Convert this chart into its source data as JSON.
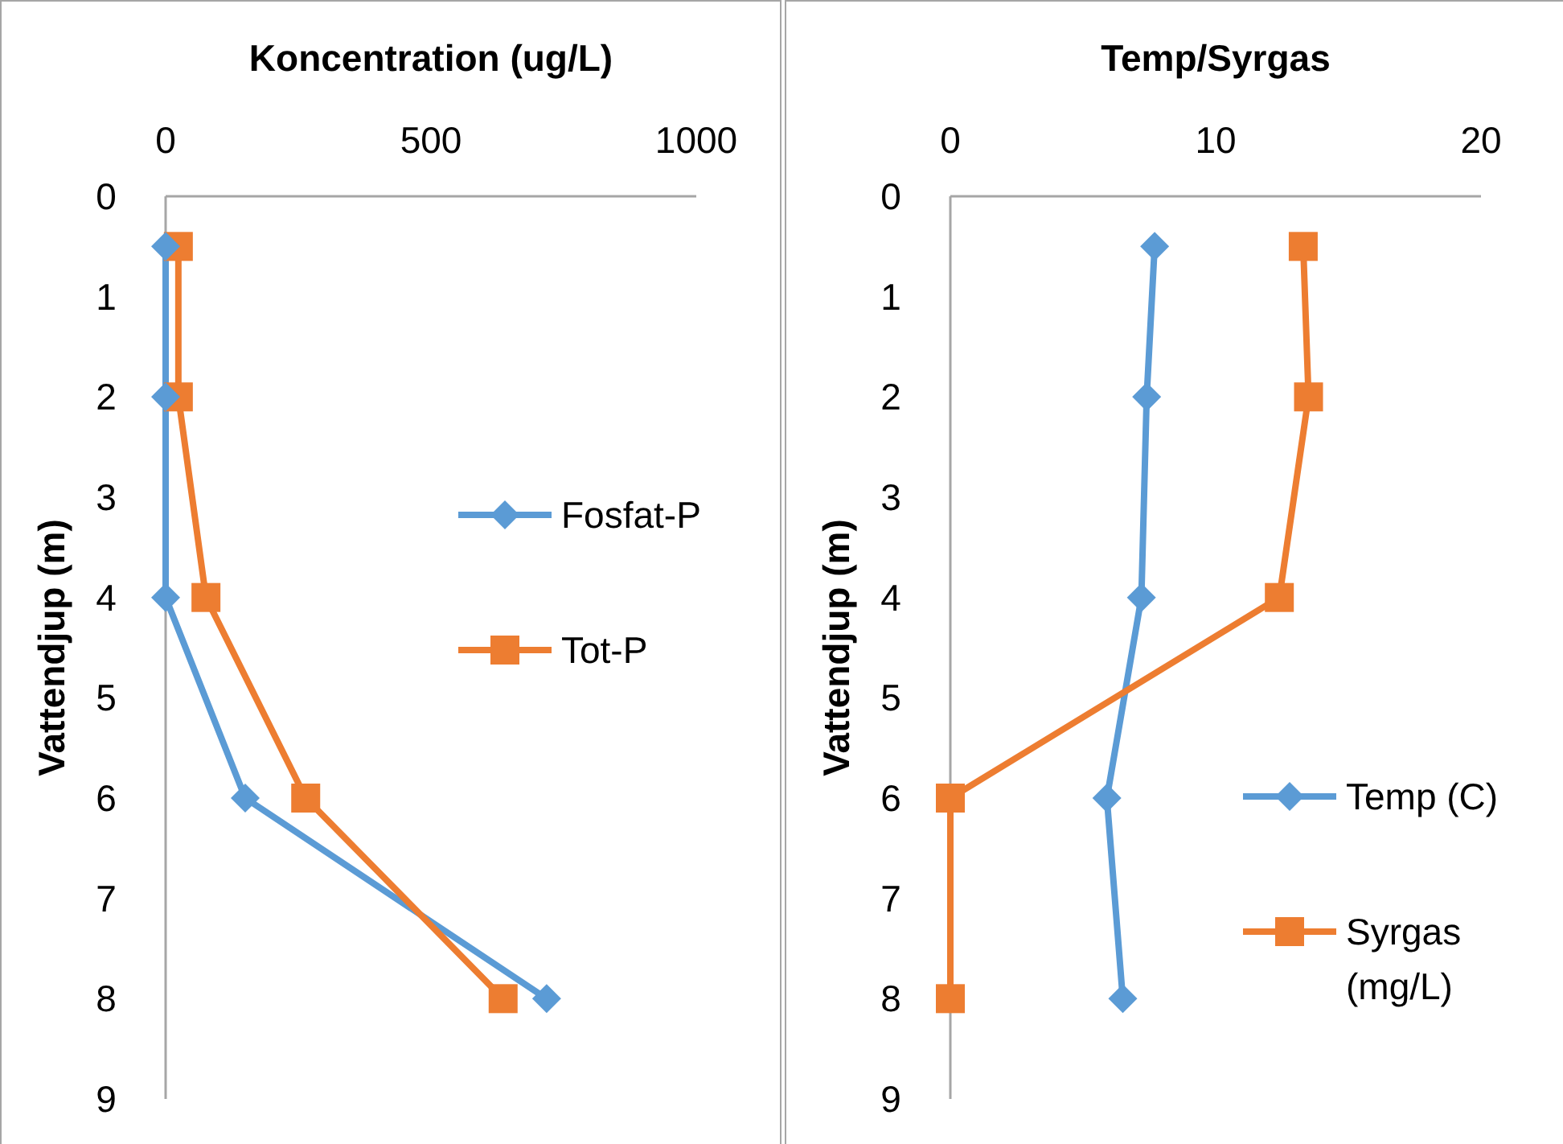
{
  "chart_data": [
    {
      "type": "line",
      "title": "Koncentration (ug/L)",
      "ylabel": "Vattendjup (m)",
      "xlim": [
        0,
        1000
      ],
      "xticks": [
        0,
        500,
        1000
      ],
      "ylim": [
        9,
        0
      ],
      "yticks": [
        0,
        1,
        2,
        3,
        4,
        5,
        6,
        7,
        8,
        9
      ],
      "grid": false,
      "legend": "right",
      "line_style": "solid",
      "series": [
        {
          "name": "Fosfat-P",
          "color": "#5b9bd5",
          "marker": "diamond",
          "x": [
            0,
            0,
            0,
            150,
            718
          ],
          "values": [
            0.5,
            2,
            4,
            6,
            8
          ]
        },
        {
          "name": "Tot-P",
          "color": "#ed7d31",
          "marker": "square",
          "x": [
            24,
            24,
            76,
            264,
            636
          ],
          "values": [
            0.5,
            2,
            4,
            6,
            8
          ]
        }
      ]
    },
    {
      "type": "line",
      "title": "Temp/Syrgas",
      "ylabel": "Vattendjup (m)",
      "xlim": [
        0,
        20
      ],
      "xticks": [
        0,
        10,
        20
      ],
      "ylim": [
        9,
        0
      ],
      "yticks": [
        0,
        1,
        2,
        3,
        4,
        5,
        6,
        7,
        8,
        9
      ],
      "grid": false,
      "legend": "bottom right",
      "line_style": "solid",
      "series": [
        {
          "name": "Temp (C)",
          "color": "#5b9bd5",
          "marker": "diamond",
          "x": [
            7.7,
            7.4,
            7.2,
            5.9,
            6.5
          ],
          "values": [
            0.5,
            2,
            4,
            6,
            8
          ]
        },
        {
          "name": "Syrgas (mg/L)",
          "color": "#ed7d31",
          "marker": "square",
          "x": [
            13.3,
            13.5,
            12.4,
            0,
            0
          ],
          "values": [
            0.5,
            2,
            4,
            6,
            8
          ]
        }
      ]
    }
  ]
}
